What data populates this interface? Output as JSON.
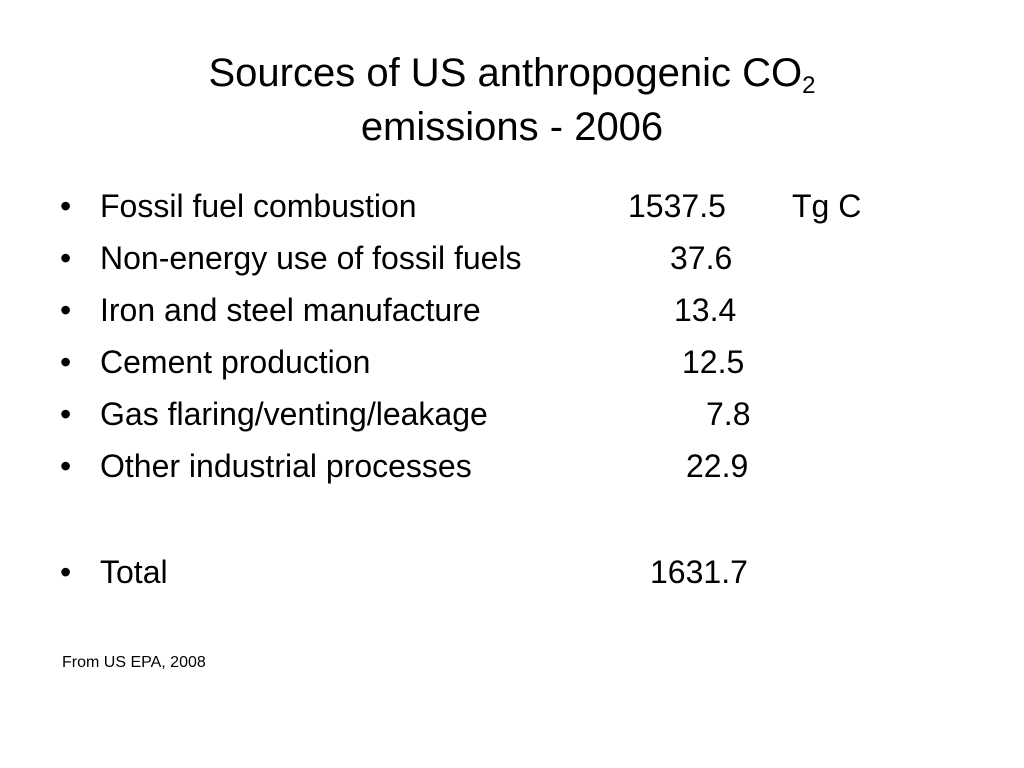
{
  "title": {
    "line1_text": "Sources of US anthropogenic CO",
    "line1_subscript": "2",
    "line2": "emissions - 2006"
  },
  "bullet_char": "•",
  "rows": [
    {
      "label": "Fossil fuel combustion",
      "value": "1537.5",
      "unit": "Tg C"
    },
    {
      "label": "Non-energy use of fossil fuels",
      "value": "37.6"
    },
    {
      "label": "Iron and steel manufacture",
      "value": "13.4"
    },
    {
      "label": "Cement production",
      "value": "12.5"
    },
    {
      "label": "Gas flaring/venting/leakage",
      "value": "7.8"
    },
    {
      "label": "Other industrial processes",
      "value": "22.9"
    }
  ],
  "total": {
    "label": "Total",
    "value": "1631.7"
  },
  "source": "From US EPA, 2008"
}
